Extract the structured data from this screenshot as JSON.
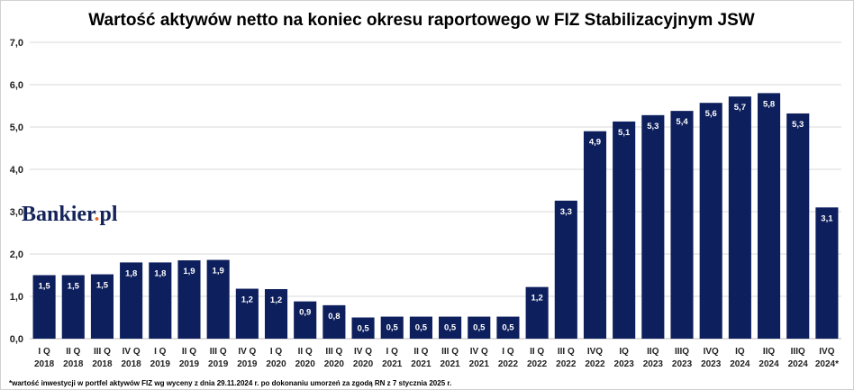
{
  "chart_data": {
    "type": "bar",
    "title": "Wartość aktywów netto na koniec okresu raportowego w FIZ Stabilizacyjnym JSW",
    "categories": [
      [
        "I Q",
        "2018"
      ],
      [
        "II Q",
        "2018"
      ],
      [
        "III Q",
        "2018"
      ],
      [
        "IV Q",
        "2018"
      ],
      [
        "I Q",
        "2019"
      ],
      [
        "II Q",
        "2019"
      ],
      [
        "III Q",
        "2019"
      ],
      [
        "IV Q",
        "2019"
      ],
      [
        "I Q",
        "2020"
      ],
      [
        "II Q",
        "2020"
      ],
      [
        "III Q",
        "2020"
      ],
      [
        "IV Q",
        "2020"
      ],
      [
        "I Q",
        "2021"
      ],
      [
        "II Q",
        "2021"
      ],
      [
        "III Q",
        "2021"
      ],
      [
        "IV Q",
        "2021"
      ],
      [
        "I Q",
        "2022"
      ],
      [
        "II Q",
        "2022"
      ],
      [
        "III Q",
        "2022"
      ],
      [
        "IVQ",
        "2022"
      ],
      [
        "IQ",
        "2023"
      ],
      [
        "IIQ",
        "2023"
      ],
      [
        "IIIQ",
        "2023"
      ],
      [
        "IVQ",
        "2023"
      ],
      [
        "IQ",
        "2024"
      ],
      [
        "IIQ",
        "2024"
      ],
      [
        "IIIQ",
        "2024"
      ],
      [
        "IVQ",
        "2024*"
      ]
    ],
    "values": [
      1.5,
      1.5,
      1.52,
      1.8,
      1.8,
      1.85,
      1.86,
      1.18,
      1.17,
      0.88,
      0.79,
      0.5,
      0.52,
      0.52,
      0.52,
      0.52,
      0.52,
      1.22,
      3.26,
      4.9,
      5.13,
      5.28,
      5.38,
      5.57,
      5.72,
      5.8,
      5.32,
      3.1
    ],
    "data_labels": [
      "1,5",
      "1,5",
      "1,5",
      "1,8",
      "1,8",
      "1,9",
      "1,9",
      "1,2",
      "1,2",
      "0,9",
      "0,8",
      "0,5",
      "0,5",
      "0,5",
      "0,5",
      "0,5",
      "0,5",
      "1,2",
      "3,3",
      "4,9",
      "5,1",
      "5,3",
      "5,4",
      "5,6",
      "5,7",
      "5,8",
      "5,3",
      "3,1"
    ],
    "ylim": [
      0,
      7
    ],
    "yticks": [
      "0,0",
      "1,0",
      "2,0",
      "3,0",
      "4,0",
      "5,0",
      "6,0",
      "7,0"
    ],
    "xlabel": "",
    "ylabel": "",
    "grid": true,
    "bar_color": "#0d1f5c"
  },
  "footnote": "*wartość inwestycji w portfel aktywów FIZ wg wyceny z dnia 29.11.2024 r. po dokonaniu umorzeń za zgodą RN z 7 stycznia 2025 r.",
  "logo": {
    "text": "Bankier",
    "suffix": "pl"
  }
}
